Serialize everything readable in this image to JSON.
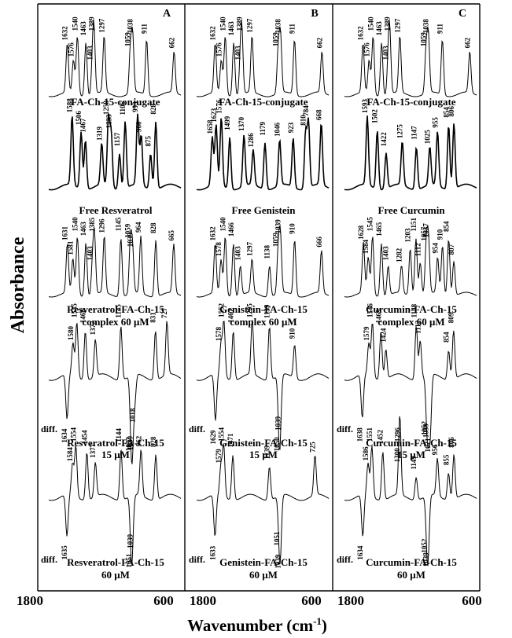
{
  "figure": {
    "ylabel": "Absorbance",
    "xlabel_main": "Wavenumber (cm",
    "xlabel_sup": "-1",
    "xlabel_close": ")",
    "x_tick_left": "1800",
    "x_tick_right": "600",
    "diff_label": "diff."
  },
  "chart_data": [
    {
      "panel": "A",
      "type": "line",
      "x_range": [
        1800,
        600
      ],
      "x_ticks": [
        "1800",
        "600"
      ],
      "ylabel": "Absorbance",
      "grid": false,
      "spectra": [
        {
          "label": [
            "FA-Ch-15-conjugate"
          ],
          "peaks": [
            1632,
            1576,
            1540,
            1463,
            1403,
            1389,
            1297,
            1059,
            1038,
            911,
            662
          ],
          "diff": false
        },
        {
          "label": [
            "Free Resveratrol"
          ],
          "peaks": [
            1588,
            1506,
            1467,
            1319,
            1258,
            1233,
            1157,
            1106,
            993,
            960,
            875,
            828
          ],
          "diff": false
        },
        {
          "label": [
            "Resveratrol-FA-Ch-15",
            "complex  60 μM"
          ],
          "peaks": [
            1631,
            1581,
            1540,
            1463,
            1403,
            1385,
            1296,
            1145,
            1059,
            1039,
            964,
            828,
            665
          ],
          "diff": false
        },
        {
          "label": [
            "Resveratrol-FA-Ch-15",
            "15 μM"
          ],
          "peaks": [
            1634,
            1580,
            1545,
            1468,
            1377,
            1145,
            1052,
            1018,
            1039,
            831,
            727
          ],
          "diff": true
        },
        {
          "label": [
            "Resveratrol-FA-Ch-15",
            "60 μM"
          ],
          "peaks": [
            1635,
            1584,
            1554,
            1454,
            1377,
            1144,
            1051,
            1039,
            962,
            828
          ],
          "diff": true
        }
      ]
    },
    {
      "panel": "B",
      "type": "line",
      "x_range": [
        1800,
        600
      ],
      "x_ticks": [
        "1800",
        "600"
      ],
      "grid": false,
      "spectra": [
        {
          "label": [
            "FA-Ch-15-conjugate"
          ],
          "peaks": [
            1632,
            1576,
            1540,
            1463,
            1403,
            1389,
            1297,
            1059,
            1038,
            911,
            662
          ],
          "diff": false
        },
        {
          "label": [
            "Free Genistein"
          ],
          "peaks": [
            1658,
            1623,
            1576,
            1499,
            1370,
            1286,
            1179,
            1046,
            923,
            810,
            784,
            668
          ],
          "diff": false
        },
        {
          "label": [
            "Genistein-FA-Ch-15",
            "complex  60 μM"
          ],
          "peaks": [
            1632,
            1578,
            1540,
            1466,
            1403,
            1297,
            1138,
            1059,
            1039,
            910,
            666
          ],
          "diff": false
        },
        {
          "label": [
            "Genistein-FA-Ch-15",
            "15 μM"
          ],
          "peaks": [
            1629,
            1578,
            1552,
            1467,
            1295,
            1139,
            1050,
            1039,
            910
          ],
          "diff": true
        },
        {
          "label": [
            "Genistein-FA-Ch-15",
            "60 μM"
          ],
          "peaks": [
            1633,
            1579,
            1554,
            1471,
            1139,
            1051,
            1039,
            725
          ],
          "diff": true
        }
      ]
    },
    {
      "panel": "C",
      "type": "line",
      "x_range": [
        1800,
        600
      ],
      "x_ticks": [
        "1800",
        "600"
      ],
      "grid": false,
      "spectra": [
        {
          "label": [
            "FA-Ch-15-conjugate"
          ],
          "peaks": [
            1632,
            1576,
            1540,
            1463,
            1403,
            1389,
            1297,
            1059,
            1038,
            911,
            662
          ],
          "diff": false
        },
        {
          "label": [
            "Free Curcumin"
          ],
          "peaks": [
            1593,
            1502,
            1422,
            1275,
            1147,
            1025,
            955,
            854,
            806
          ],
          "diff": false
        },
        {
          "label": [
            "Curcumin-FA-Ch-15",
            "complex  60 μM"
          ],
          "peaks": [
            1628,
            1584,
            1545,
            1465,
            1403,
            1282,
            1203,
            1151,
            1112,
            1057,
            1037,
            954,
            910,
            854,
            807
          ],
          "diff": false
        },
        {
          "label": [
            "Curcumin-FA-Ch-15",
            "15 μM"
          ],
          "peaks": [
            1638,
            1579,
            1546,
            1469,
            1424,
            1148,
            1112,
            1052,
            1021,
            1039,
            854,
            809
          ],
          "diff": true
        },
        {
          "label": [
            "Curcumin-FA-Ch-15",
            "60 μM"
          ],
          "peaks": [
            1634,
            1586,
            1551,
            1452,
            1296,
            1300,
            1149,
            1052,
            1039,
            956,
            855,
            806
          ],
          "diff": true
        }
      ]
    }
  ]
}
